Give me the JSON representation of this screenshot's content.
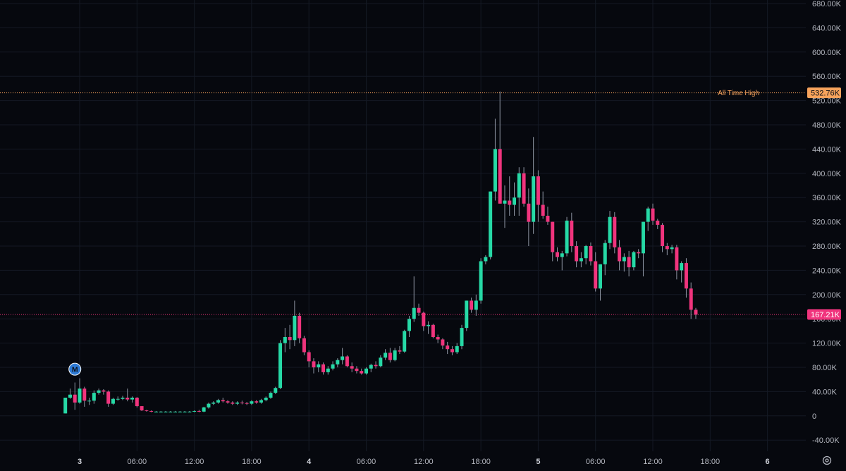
{
  "colors": {
    "background": "#06080e",
    "up": "#26d9a6",
    "down": "#f0347d",
    "wick": "#8c93a1",
    "ath": "#f7a35c",
    "current": "#f0347d",
    "marker": "#2e7bd6"
  },
  "chart_data": {
    "type": "candlestick",
    "y_unit": "thousands",
    "ylim": [
      -50,
      680
    ],
    "y_ticks": [
      "680.00K",
      "640.00K",
      "600.00K",
      "560.00K",
      "520.00K",
      "480.00K",
      "440.00K",
      "400.00K",
      "360.00K",
      "320.00K",
      "280.00K",
      "240.00K",
      "200.00K",
      "160.00K",
      "120.00K",
      "80.00K",
      "40.00K",
      "0",
      "-40.00K"
    ],
    "x_ticks": [
      {
        "label": "3",
        "bold": true,
        "hour": 0
      },
      {
        "label": "06:00",
        "bold": false,
        "hour": 6
      },
      {
        "label": "12:00",
        "bold": false,
        "hour": 12
      },
      {
        "label": "18:00",
        "bold": false,
        "hour": 18
      },
      {
        "label": "4",
        "bold": true,
        "hour": 24
      },
      {
        "label": "06:00",
        "bold": false,
        "hour": 30
      },
      {
        "label": "12:00",
        "bold": false,
        "hour": 36
      },
      {
        "label": "18:00",
        "bold": false,
        "hour": 42
      },
      {
        "label": "5",
        "bold": true,
        "hour": 48
      },
      {
        "label": "06:00",
        "bold": false,
        "hour": 54
      },
      {
        "label": "12:00",
        "bold": false,
        "hour": 60
      },
      {
        "label": "18:00",
        "bold": false,
        "hour": 66
      },
      {
        "label": "6",
        "bold": true,
        "hour": 72
      }
    ],
    "candle_start_hour": -1.5,
    "candle_interval_hours": 0.5,
    "candles_ohlc": [
      [
        4,
        30,
        4,
        30
      ],
      [
        30,
        45,
        28,
        35
      ],
      [
        35,
        55,
        10,
        22
      ],
      [
        22,
        62,
        20,
        45
      ],
      [
        45,
        48,
        15,
        25
      ],
      [
        25,
        30,
        18,
        25
      ],
      [
        25,
        42,
        20,
        38
      ],
      [
        38,
        45,
        35,
        42
      ],
      [
        42,
        44,
        35,
        40
      ],
      [
        40,
        42,
        15,
        20
      ],
      [
        20,
        30,
        18,
        28
      ],
      [
        28,
        32,
        25,
        28
      ],
      [
        28,
        33,
        26,
        30
      ],
      [
        30,
        45,
        24,
        27
      ],
      [
        27,
        32,
        22,
        30
      ],
      [
        30,
        31,
        14,
        16
      ],
      [
        16,
        16,
        8,
        9
      ],
      [
        9,
        10,
        7,
        8
      ],
      [
        8,
        9,
        6,
        7
      ],
      [
        7,
        8,
        6,
        7
      ],
      [
        7,
        8,
        6,
        7
      ],
      [
        7,
        8,
        6,
        7
      ],
      [
        7,
        8,
        6,
        7
      ],
      [
        7,
        8,
        6,
        7
      ],
      [
        7,
        8,
        6,
        7
      ],
      [
        7,
        8,
        6,
        7
      ],
      [
        7,
        8,
        6,
        7
      ],
      [
        7,
        9,
        6,
        8
      ],
      [
        8,
        10,
        6,
        7
      ],
      [
        7,
        15,
        6,
        14
      ],
      [
        14,
        22,
        12,
        20
      ],
      [
        20,
        24,
        18,
        22
      ],
      [
        22,
        28,
        20,
        26
      ],
      [
        26,
        30,
        22,
        24
      ],
      [
        24,
        26,
        20,
        22
      ],
      [
        22,
        24,
        18,
        20
      ],
      [
        20,
        24,
        18,
        22
      ],
      [
        22,
        25,
        19,
        21
      ],
      [
        21,
        23,
        18,
        20
      ],
      [
        20,
        26,
        18,
        24
      ],
      [
        24,
        26,
        20,
        22
      ],
      [
        22,
        28,
        20,
        26
      ],
      [
        26,
        32,
        24,
        30
      ],
      [
        30,
        40,
        28,
        38
      ],
      [
        38,
        48,
        36,
        46
      ],
      [
        46,
        125,
        44,
        120
      ],
      [
        120,
        145,
        105,
        130
      ],
      [
        130,
        150,
        110,
        125
      ],
      [
        125,
        190,
        115,
        165
      ],
      [
        165,
        170,
        120,
        128
      ],
      [
        128,
        132,
        100,
        105
      ],
      [
        105,
        108,
        80,
        90
      ],
      [
        90,
        95,
        70,
        80
      ],
      [
        80,
        90,
        72,
        85
      ],
      [
        85,
        88,
        68,
        72
      ],
      [
        72,
        82,
        68,
        78
      ],
      [
        78,
        90,
        75,
        85
      ],
      [
        85,
        95,
        80,
        92
      ],
      [
        92,
        112,
        85,
        98
      ],
      [
        98,
        100,
        80,
        82
      ],
      [
        82,
        88,
        72,
        78
      ],
      [
        78,
        82,
        70,
        74
      ],
      [
        74,
        78,
        68,
        70
      ],
      [
        70,
        80,
        68,
        78
      ],
      [
        78,
        86,
        72,
        84
      ],
      [
        84,
        90,
        78,
        82
      ],
      [
        82,
        100,
        80,
        96
      ],
      [
        96,
        110,
        92,
        104
      ],
      [
        104,
        112,
        88,
        92
      ],
      [
        92,
        112,
        90,
        108
      ],
      [
        108,
        115,
        102,
        106
      ],
      [
        106,
        142,
        104,
        140
      ],
      [
        140,
        165,
        130,
        160
      ],
      [
        160,
        230,
        155,
        178
      ],
      [
        178,
        185,
        165,
        170
      ],
      [
        170,
        172,
        140,
        148
      ],
      [
        148,
        156,
        135,
        150
      ],
      [
        150,
        152,
        128,
        130
      ],
      [
        130,
        134,
        120,
        126
      ],
      [
        126,
        128,
        110,
        116
      ],
      [
        116,
        122,
        102,
        110
      ],
      [
        110,
        115,
        100,
        105
      ],
      [
        105,
        120,
        102,
        115
      ],
      [
        115,
        150,
        110,
        145
      ],
      [
        145,
        180,
        140,
        190
      ],
      [
        190,
        195,
        170,
        175
      ],
      [
        175,
        200,
        165,
        190
      ],
      [
        190,
        260,
        185,
        255
      ],
      [
        255,
        265,
        250,
        262
      ],
      [
        262,
        330,
        258,
        370
      ],
      [
        370,
        490,
        355,
        440
      ],
      [
        440,
        535,
        380,
        350
      ],
      [
        350,
        380,
        310,
        355
      ],
      [
        355,
        395,
        330,
        348
      ],
      [
        348,
        385,
        330,
        360
      ],
      [
        360,
        410,
        330,
        400
      ],
      [
        400,
        410,
        345,
        350
      ],
      [
        350,
        375,
        280,
        320
      ],
      [
        320,
        460,
        300,
        395
      ],
      [
        395,
        405,
        320,
        348
      ],
      [
        348,
        370,
        325,
        330
      ],
      [
        330,
        345,
        315,
        320
      ],
      [
        320,
        290,
        255,
        270
      ],
      [
        270,
        278,
        255,
        262
      ],
      [
        262,
        272,
        240,
        268
      ],
      [
        268,
        328,
        263,
        322
      ],
      [
        322,
        335,
        270,
        280
      ],
      [
        280,
        288,
        245,
        255
      ],
      [
        255,
        270,
        245,
        260
      ],
      [
        260,
        282,
        250,
        280
      ],
      [
        280,
        286,
        248,
        255
      ],
      [
        255,
        270,
        205,
        210
      ],
      [
        210,
        235,
        190,
        250
      ],
      [
        250,
        290,
        232,
        285
      ],
      [
        285,
        338,
        275,
        328
      ],
      [
        328,
        336,
        268,
        278
      ],
      [
        278,
        290,
        240,
        255
      ],
      [
        255,
        268,
        238,
        262
      ],
      [
        262,
        272,
        230,
        245
      ],
      [
        245,
        272,
        240,
        270
      ],
      [
        270,
        275,
        260,
        268
      ],
      [
        268,
        300,
        230,
        320
      ],
      [
        320,
        345,
        305,
        342
      ],
      [
        342,
        350,
        315,
        322
      ],
      [
        322,
        325,
        308,
        315
      ],
      [
        315,
        318,
        270,
        280
      ],
      [
        280,
        285,
        265,
        275
      ],
      [
        275,
        282,
        268,
        278
      ],
      [
        278,
        282,
        225,
        240
      ],
      [
        240,
        255,
        220,
        252
      ],
      [
        252,
        260,
        195,
        210
      ],
      [
        210,
        220,
        160,
        175
      ],
      [
        175,
        178,
        160,
        167
      ]
    ],
    "all_time_high": {
      "value": 532.76,
      "label": "All Time High",
      "tag": "532.76K"
    },
    "current_price": {
      "value": 167.21,
      "tag": "167.21K"
    },
    "marker": {
      "label": "M",
      "hour": -0.5,
      "value": 77
    }
  },
  "settings_icon": "gear-icon"
}
